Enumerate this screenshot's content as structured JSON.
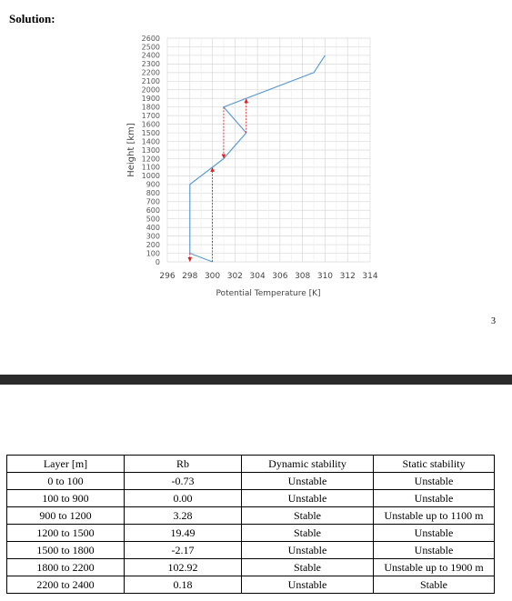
{
  "heading": "Solution:",
  "page_number": "3",
  "chart_data": {
    "type": "line",
    "xlabel": "Potential Temperature  [K]",
    "ylabel": "Height [km]",
    "xlim": [
      296,
      314
    ],
    "ylim": [
      0,
      2600
    ],
    "xticks": [
      "296",
      "298",
      "300",
      "302",
      "304",
      "306",
      "308",
      "310",
      "312",
      "314"
    ],
    "yticks": [
      "0",
      "100",
      "200",
      "300",
      "400",
      "500",
      "600",
      "700",
      "800",
      "900",
      "1000",
      "1100",
      "1200",
      "1300",
      "1400",
      "1500",
      "1600",
      "1700",
      "1800",
      "1900",
      "2000",
      "2100",
      "2200",
      "2300",
      "2400",
      "2500",
      "2600"
    ],
    "grid": true,
    "line_color": "#5b9bd5",
    "arrow_color": "#e02020",
    "series": [
      {
        "x": [
          300.0,
          298.0,
          298.0,
          301.0,
          303.0,
          301.0,
          309.0,
          310.0
        ],
        "y": [
          0,
          100,
          900,
          1200,
          1500,
          1800,
          2200,
          2400
        ]
      }
    ],
    "arrows": [
      {
        "x": 298.0,
        "y_from": 100,
        "y_to": 0
      },
      {
        "x": 300.0,
        "y_from": 0,
        "y_to": 1100
      },
      {
        "x": 301.0,
        "y_from": 1800,
        "y_to": 1200
      },
      {
        "x": 303.0,
        "y_from": 1500,
        "y_to": 1900
      }
    ]
  },
  "table": {
    "headers": [
      "Layer [m]",
      "Rb",
      "Dynamic stability",
      "Static stability"
    ],
    "rows": [
      [
        "0 to 100",
        "-0.73",
        "Unstable",
        "Unstable"
      ],
      [
        "100 to 900",
        "0.00",
        "Unstable",
        "Unstable"
      ],
      [
        "900 to 1200",
        "3.28",
        "Stable",
        "Unstable up to 1100 m"
      ],
      [
        "1200 to 1500",
        "19.49",
        "Stable",
        "Unstable"
      ],
      [
        "1500 to 1800",
        "-2.17",
        "Unstable",
        "Unstable"
      ],
      [
        "1800 to 2200",
        "102.92",
        "Stable",
        "Unstable up to 1900 m"
      ],
      [
        "2200 to 2400",
        "0.18",
        "Unstable",
        "Stable"
      ]
    ]
  }
}
